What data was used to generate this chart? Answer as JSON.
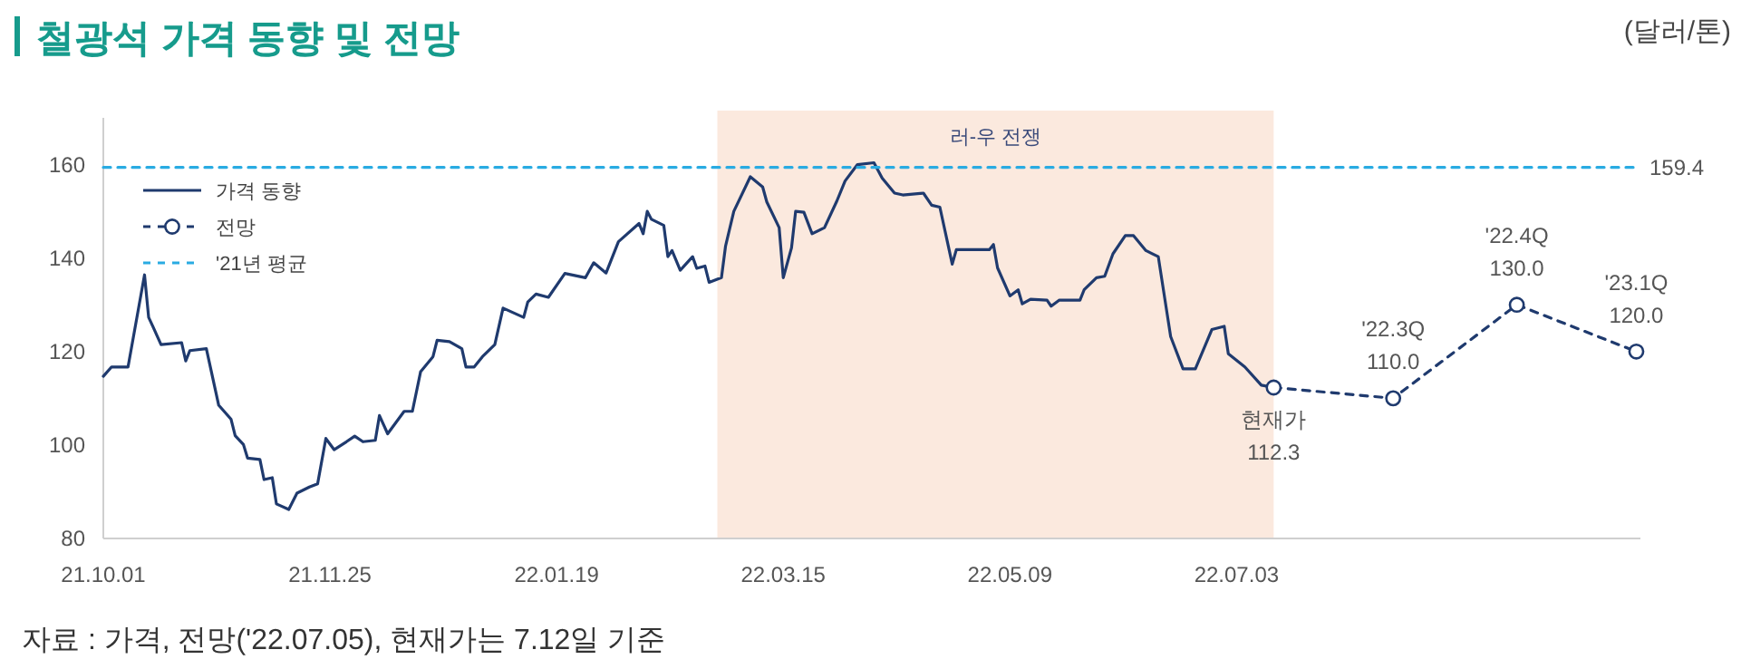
{
  "chart_data": {
    "type": "line",
    "title": "철광석 가격 동향 및 전망",
    "ylabel": "(달러/톤)",
    "xlim": [
      "2021-10-01",
      "2022-10-09"
    ],
    "ylim": [
      80,
      170
    ],
    "xticks": [
      {
        "value": "2021-10-01",
        "label": "21.10.01"
      },
      {
        "value": "2021-11-25",
        "label": "21.11.25"
      },
      {
        "value": "2022-01-19",
        "label": "22.01.19"
      },
      {
        "value": "2022-03-15",
        "label": "22.03.15"
      },
      {
        "value": "2022-05-09",
        "label": "22.05.09"
      },
      {
        "value": "2022-07-03",
        "label": "22.07.03"
      }
    ],
    "yticks": [
      80,
      100,
      120,
      140,
      160
    ],
    "legend": "top left",
    "grid": false,
    "bands": [
      {
        "axis": "x",
        "from": "2022-02-27",
        "to": "2022-07-12",
        "label": "러-우 전쟁",
        "color": "#fbe9de"
      }
    ],
    "series": [
      {
        "name": "가격 동향",
        "color": "#1f3a6e",
        "marker": "none",
        "line_style": "solid",
        "x": [
          "2021-10-01",
          "2021-10-03",
          "2021-10-07",
          "2021-10-11",
          "2021-10-12",
          "2021-10-13",
          "2021-10-15",
          "2021-10-20",
          "2021-10-21",
          "2021-10-22",
          "2021-10-26",
          "2021-10-29",
          "2021-11-01",
          "2021-11-02",
          "2021-11-04",
          "2021-11-05",
          "2021-11-08",
          "2021-11-09",
          "2021-11-11",
          "2021-11-12",
          "2021-11-15",
          "2021-11-17",
          "2021-11-20",
          "2021-11-22",
          "2021-11-24",
          "2021-11-26",
          "2021-11-29",
          "2021-12-01",
          "2021-12-03",
          "2021-12-06",
          "2021-12-07",
          "2021-12-09",
          "2021-12-13",
          "2021-12-15",
          "2021-12-17",
          "2021-12-20",
          "2021-12-21",
          "2021-12-24",
          "2021-12-27",
          "2021-12-28",
          "2021-12-30",
          "2022-01-01",
          "2022-01-04",
          "2022-01-06",
          "2022-01-11",
          "2022-01-12",
          "2022-01-14",
          "2022-01-17",
          "2022-01-21",
          "2022-01-26",
          "2022-01-28",
          "2022-01-31",
          "2022-02-03",
          "2022-02-08",
          "2022-02-09",
          "2022-02-10",
          "2022-02-11",
          "2022-02-14",
          "2022-02-15",
          "2022-02-16",
          "2022-02-18",
          "2022-02-21",
          "2022-02-22",
          "2022-02-24",
          "2022-02-25",
          "2022-02-28",
          "2022-03-01",
          "2022-03-03",
          "2022-03-07",
          "2022-03-10",
          "2022-03-11",
          "2022-03-14",
          "2022-03-15",
          "2022-03-17",
          "2022-03-18",
          "2022-03-20",
          "2022-03-22",
          "2022-03-25",
          "2022-03-28",
          "2022-03-30",
          "2022-04-02",
          "2022-04-06",
          "2022-04-08",
          "2022-04-11",
          "2022-04-13",
          "2022-04-18",
          "2022-04-20",
          "2022-04-22",
          "2022-04-25",
          "2022-04-26",
          "2022-05-04",
          "2022-05-05",
          "2022-05-06",
          "2022-05-09",
          "2022-05-11",
          "2022-05-12",
          "2022-05-14",
          "2022-05-18",
          "2022-05-19",
          "2022-05-21",
          "2022-05-26",
          "2022-05-27",
          "2022-05-30",
          "2022-06-01",
          "2022-06-03",
          "2022-06-06",
          "2022-06-08",
          "2022-06-11",
          "2022-06-14",
          "2022-06-17",
          "2022-06-20",
          "2022-06-23",
          "2022-06-27",
          "2022-06-30",
          "2022-07-01",
          "2022-07-05",
          "2022-07-09",
          "2022-07-12"
        ],
        "values": [
          114.7,
          116.7,
          116.7,
          136.4,
          127.3,
          125.4,
          121.5,
          121.9,
          118.0,
          120.2,
          120.6,
          108.5,
          105.5,
          102.0,
          100.1,
          97.2,
          96.9,
          92.6,
          93.0,
          87.4,
          86.2,
          89.7,
          91.0,
          91.7,
          101.4,
          99.0,
          100.7,
          101.9,
          100.7,
          101.0,
          106.3,
          102.4,
          107.2,
          107.2,
          115.7,
          118.9,
          122.4,
          122.1,
          120.6,
          116.7,
          116.7,
          118.9,
          121.5,
          129.3,
          127.3,
          130.6,
          132.3,
          131.6,
          136.7,
          135.8,
          139.0,
          136.8,
          143.5,
          147.4,
          145.2,
          150.0,
          148.3,
          147.0,
          140.3,
          141.6,
          137.4,
          140.3,
          137.8,
          138.3,
          134.8,
          135.8,
          142.6,
          150.0,
          157.4,
          155.2,
          152.0,
          146.5,
          135.8,
          142.2,
          150.0,
          149.8,
          145.2,
          146.5,
          152.2,
          156.5,
          160.0,
          160.4,
          157.1,
          153.9,
          153.5,
          153.9,
          151.3,
          150.9,
          138.7,
          141.8,
          141.8,
          142.9,
          137.9,
          131.9,
          133.2,
          130.2,
          131.2,
          131.0,
          129.7,
          131.0,
          131.0,
          133.2,
          135.8,
          136.1,
          140.9,
          144.8,
          144.8,
          141.6,
          140.3,
          123.2,
          116.3,
          116.3,
          124.7,
          125.4,
          119.5,
          116.7,
          112.8,
          112.3
        ]
      },
      {
        "name": "전망",
        "color": "#1f3a6e",
        "marker": "circle",
        "line_style": "dashed",
        "x": [
          "2022-07-12",
          "2022-08-10",
          "2022-09-09",
          "2022-10-08"
        ],
        "values": [
          112.3,
          110.0,
          130.0,
          120.0
        ],
        "value_labels": [
          "112.3",
          "110.0",
          "130.0",
          "120.0"
        ]
      },
      {
        "name": "'21년 평균",
        "color": "#29abe2",
        "marker": "none",
        "line_style": "dashed",
        "x": [
          "2021-10-01",
          "2022-10-09"
        ],
        "values": [
          159.4,
          159.4
        ],
        "value_labels": [
          null,
          "159.4"
        ]
      }
    ],
    "annotations": [
      {
        "text": "현재가",
        "x": "2022-07-12",
        "y": 112.3
      },
      {
        "text": "'22.3Q",
        "x": "2022-08-10",
        "y": 110.0
      },
      {
        "text": "'22.4Q",
        "x": "2022-09-09",
        "y": 130.0
      },
      {
        "text": "'23.1Q",
        "x": "2022-10-08",
        "y": 120.0
      },
      "자료 : 가격, 전망('22.07.05), 현재가는 7.12일 기준"
    ]
  }
}
